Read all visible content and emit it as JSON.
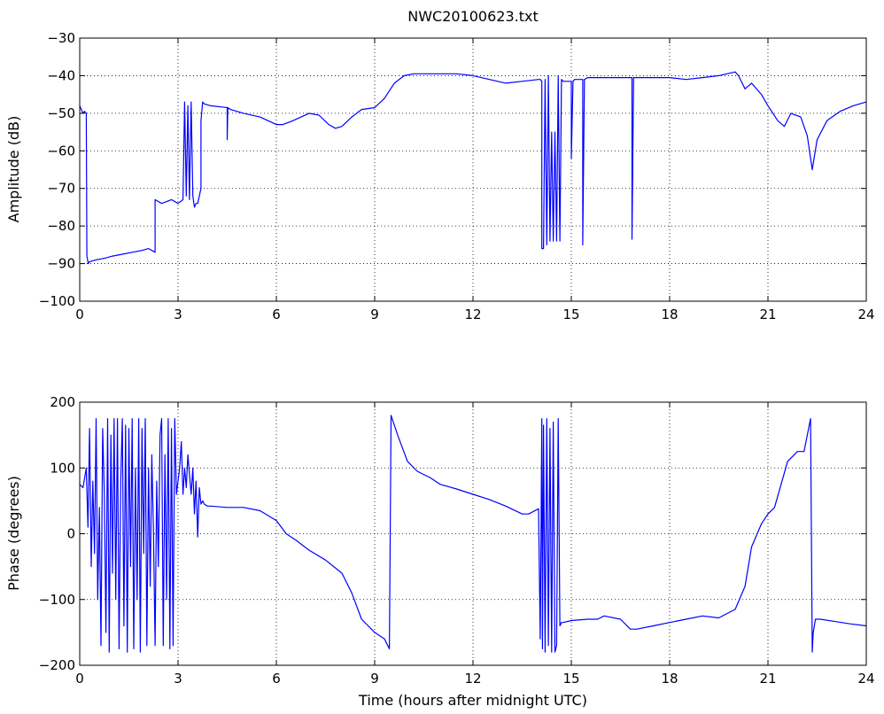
{
  "chart_data": [
    {
      "type": "line",
      "title": "NWC20100623.txt",
      "xlabel": "",
      "ylabel": "Amplitude (dB)",
      "xlim": [
        0,
        24
      ],
      "ylim": [
        -100,
        -30
      ],
      "xticks": [
        0,
        3,
        6,
        9,
        12,
        15,
        18,
        21,
        24
      ],
      "yticks": [
        -100,
        -90,
        -80,
        -70,
        -60,
        -50,
        -40,
        -30
      ],
      "xtick_labels": [
        "0",
        "3",
        "6",
        "9",
        "12",
        "15",
        "18",
        "21",
        "24"
      ],
      "ytick_labels": [
        "−100",
        "−90",
        "−80",
        "−70",
        "−60",
        "−50",
        "−40",
        "−30"
      ],
      "grid": true,
      "color": "#0000ff",
      "series": [
        {
          "x": [
            0,
            0.05,
            0.1,
            0.15,
            0.2,
            0.22,
            0.24,
            0.26,
            0.3,
            0.5,
            0.8,
            1.0,
            1.3,
            1.6,
            1.9,
            2.1,
            2.3,
            2.3,
            2.5,
            2.8,
            3.0,
            3.15,
            3.2,
            3.25,
            3.3,
            3.35,
            3.4,
            3.45,
            3.5,
            3.55,
            3.6,
            3.7,
            3.7,
            3.75,
            3.8,
            4.0,
            4.5,
            4.5,
            4.52,
            4.6,
            5.0,
            5.5,
            6.0,
            6.2,
            6.5,
            7.0,
            7.3,
            7.6,
            7.8,
            8.0,
            8.3,
            8.6,
            9.0,
            9.3,
            9.6,
            9.9,
            10.2,
            10.5,
            11.0,
            11.5,
            12.0,
            12.5,
            13.0,
            13.5,
            14.0,
            14.05,
            14.1,
            14.1,
            14.15,
            14.2,
            14.25,
            14.3,
            14.35,
            14.4,
            14.45,
            14.5,
            14.55,
            14.6,
            14.65,
            14.7,
            14.75,
            15.0,
            15.0,
            15.05,
            15.1,
            15.35,
            15.35,
            15.4,
            15.5,
            16.0,
            16.5,
            16.85,
            16.85,
            16.9,
            17.5,
            18.0,
            18.5,
            19.0,
            19.5,
            20.0,
            20.1,
            20.3,
            20.5,
            20.8,
            21.0,
            21.3,
            21.5,
            21.7,
            22.0,
            22.2,
            22.35,
            22.5,
            22.8,
            23.2,
            23.6,
            24.0
          ],
          "y": [
            -48,
            -49,
            -50,
            -49.5,
            -50,
            -88,
            -89,
            -90,
            -89.5,
            -89,
            -88.5,
            -88,
            -87.5,
            -87,
            -86.5,
            -86,
            -87,
            -73,
            -74,
            -73,
            -74,
            -73,
            -47,
            -72,
            -48,
            -73,
            -47,
            -72,
            -75,
            -74,
            -74,
            -70,
            -52,
            -47,
            -47.5,
            -48,
            -48.5,
            -57,
            -48.5,
            -49,
            -50,
            -51,
            -53,
            -53,
            -52,
            -50,
            -50.5,
            -53,
            -54,
            -53.5,
            -51,
            -49,
            -48.5,
            -46,
            -42,
            -40,
            -39.5,
            -39.5,
            -39.5,
            -39.5,
            -40,
            -41,
            -42,
            -41.5,
            -41,
            -41,
            -41.5,
            -86,
            -86,
            -41,
            -85,
            -40,
            -84,
            -55,
            -84,
            -55,
            -84,
            -40,
            -84,
            -41,
            -41.5,
            -41.5,
            -62,
            -41.5,
            -41,
            -41,
            -85,
            -41,
            -40.5,
            -40.5,
            -40.5,
            -40.5,
            -83.5,
            -40.5,
            -40.5,
            -40.5,
            -41,
            -40.5,
            -40,
            -39,
            -40,
            -43.5,
            -42,
            -45,
            -48,
            -52,
            -53.5,
            -50,
            -51,
            -56,
            -65,
            -57,
            -52,
            -49.5,
            -48,
            -47
          ]
        }
      ]
    },
    {
      "type": "line",
      "title": "",
      "xlabel": "Time (hours after midnight UTC)",
      "ylabel": "Phase (degrees)",
      "xlim": [
        0,
        24
      ],
      "ylim": [
        -200,
        200
      ],
      "xticks": [
        0,
        3,
        6,
        9,
        12,
        15,
        18,
        21,
        24
      ],
      "yticks": [
        -200,
        -100,
        0,
        100,
        200
      ],
      "xtick_labels": [
        "0",
        "3",
        "6",
        "9",
        "12",
        "15",
        "18",
        "21",
        "24"
      ],
      "ytick_labels": [
        "−200",
        "−100",
        "0",
        "100",
        "200"
      ],
      "grid": true,
      "color": "#0000ff",
      "series": [
        {
          "x": [
            0,
            0.1,
            0.2,
            0.25,
            0.3,
            0.35,
            0.4,
            0.45,
            0.5,
            0.55,
            0.6,
            0.65,
            0.7,
            0.75,
            0.8,
            0.85,
            0.9,
            0.95,
            1.0,
            1.05,
            1.1,
            1.15,
            1.2,
            1.25,
            1.3,
            1.35,
            1.4,
            1.45,
            1.5,
            1.55,
            1.6,
            1.65,
            1.7,
            1.75,
            1.8,
            1.85,
            1.9,
            1.95,
            2.0,
            2.05,
            2.1,
            2.15,
            2.2,
            2.25,
            2.3,
            2.35,
            2.4,
            2.45,
            2.5,
            2.55,
            2.6,
            2.65,
            2.7,
            2.75,
            2.8,
            2.85,
            2.9,
            2.95,
            3.0,
            3.05,
            3.1,
            3.15,
            3.2,
            3.25,
            3.3,
            3.35,
            3.4,
            3.45,
            3.5,
            3.55,
            3.6,
            3.65,
            3.7,
            3.75,
            3.8,
            3.9,
            4.0,
            4.5,
            5.0,
            5.5,
            6.0,
            6.3,
            6.6,
            7.0,
            7.5,
            8.0,
            8.3,
            8.6,
            9.0,
            9.3,
            9.45,
            9.5,
            9.7,
            10.0,
            10.3,
            10.7,
            11.0,
            11.5,
            12.0,
            12.5,
            13.0,
            13.5,
            13.7,
            14.0,
            14.05,
            14.1,
            14.12,
            14.15,
            14.2,
            14.25,
            14.3,
            14.35,
            14.4,
            14.45,
            14.5,
            14.55,
            14.6,
            14.65,
            14.7,
            14.75,
            15.0,
            15.5,
            15.8,
            16.0,
            16.5,
            16.8,
            17.0,
            17.5,
            18.0,
            18.5,
            19.0,
            19.5,
            19.8,
            20.0,
            20.3,
            20.5,
            20.8,
            21.0,
            21.2,
            21.4,
            21.6,
            21.9,
            22.1,
            22.3,
            22.35,
            22.38,
            22.45,
            22.6,
            23.0,
            23.5,
            24.0
          ],
          "y": [
            75,
            70,
            100,
            10,
            160,
            -50,
            80,
            -30,
            175,
            -100,
            40,
            -170,
            160,
            60,
            -150,
            175,
            -180,
            150,
            -60,
            175,
            -100,
            175,
            -175,
            80,
            175,
            -140,
            165,
            -180,
            160,
            -50,
            175,
            -175,
            100,
            -100,
            175,
            -180,
            160,
            -30,
            175,
            -170,
            100,
            -80,
            120,
            0,
            -170,
            80,
            -50,
            150,
            175,
            -170,
            120,
            -100,
            175,
            -175,
            160,
            -170,
            175,
            60,
            80,
            100,
            140,
            60,
            100,
            70,
            120,
            90,
            60,
            100,
            30,
            80,
            -5,
            70,
            45,
            50,
            45,
            42,
            42,
            40,
            40,
            35,
            20,
            0,
            -10,
            -25,
            -40,
            -60,
            -90,
            -130,
            -150,
            -160,
            -175,
            180,
            150,
            110,
            95,
            85,
            75,
            68,
            60,
            52,
            42,
            30,
            30,
            38,
            -160,
            175,
            -175,
            165,
            -180,
            175,
            -170,
            160,
            -180,
            170,
            -180,
            -170,
            175,
            -140,
            -135,
            -135,
            -132,
            -130,
            -130,
            -125,
            -130,
            -145,
            -145,
            -140,
            -135,
            -130,
            -125,
            -128,
            -120,
            -115,
            -80,
            -20,
            15,
            30,
            40,
            75,
            110,
            125,
            125,
            175,
            -180,
            -150,
            -130,
            -130,
            -133,
            -137,
            -140
          ]
        }
      ]
    }
  ]
}
